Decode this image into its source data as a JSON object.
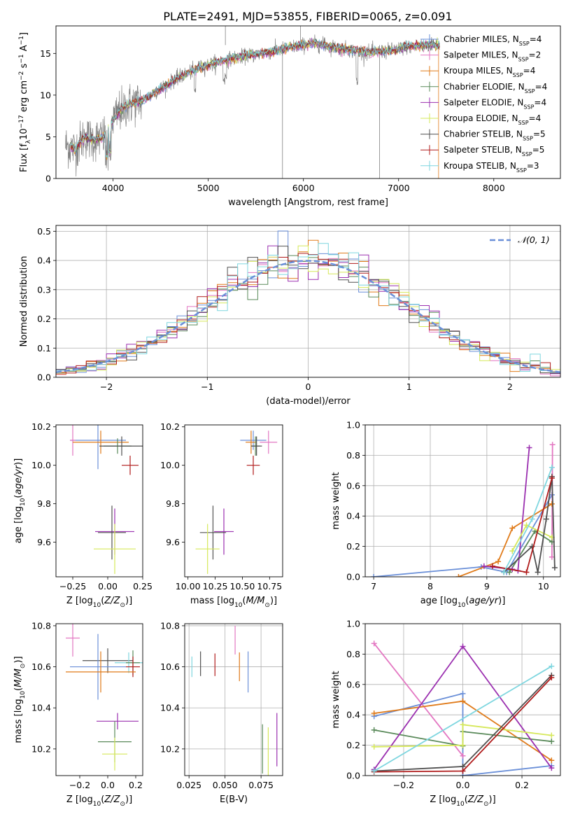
{
  "title": "PLATE=2491, MJD=53855, FIBERID=0065, z=0.091",
  "chart_data": [
    {
      "id": "spectrum",
      "type": "line",
      "xlabel": "wavelength [Angstrom, rest frame]",
      "ylabel": "Flux [f_λ10^-17 erg cm^-2 s^-1 A^-1]",
      "xlim": [
        3400,
        8700
      ],
      "ylim": [
        0,
        18.3
      ],
      "xticks": [
        4000,
        5000,
        6000,
        7000,
        8000
      ],
      "yticks": [
        0,
        5,
        10,
        15
      ],
      "grid": false,
      "legend_position": "upper-right",
      "data_range": [
        3500,
        7430
      ],
      "series": [
        {
          "name": "Chabrier MILES, N_SSP=4",
          "color": "#6a8fd8"
        },
        {
          "name": "Salpeter MILES, N_SSP=2",
          "color": "#e377c2"
        },
        {
          "name": "Kroupa MILES, N_SSP=4",
          "color": "#e07b1a"
        },
        {
          "name": "Chabrier ELODIE, N_SSP=4",
          "color": "#5a8a5a"
        },
        {
          "name": "Salpeter ELODIE, N_SSP=4",
          "color": "#9b30b0"
        },
        {
          "name": "Kroupa ELODIE, N_SSP=4",
          "color": "#d6e85a"
        },
        {
          "name": "Chabrier STELIB, N_SSP=5",
          "color": "#505050"
        },
        {
          "name": "Salpeter STELIB, N_SSP=5",
          "color": "#b01c1c"
        },
        {
          "name": "Kroupa STELIB, N_SSP=3",
          "color": "#7ed6df"
        }
      ],
      "data_color": "#808080",
      "continuum_x": [
        3500,
        3600,
        3700,
        3800,
        3900,
        4000,
        4100,
        4200,
        4300,
        4500,
        4700,
        4900,
        5100,
        5300,
        5500,
        5700,
        5900,
        6100,
        6300,
        6500,
        6700,
        6900,
        7100,
        7300,
        7430
      ],
      "continuum_y": [
        4.0,
        3.5,
        5.0,
        4.6,
        5.0,
        7.0,
        8.5,
        9.0,
        9.3,
        10.8,
        12.2,
        13.2,
        14.0,
        14.5,
        14.9,
        15.3,
        15.8,
        16.2,
        15.8,
        15.4,
        15.1,
        15.3,
        15.8,
        16.0,
        16.0
      ]
    },
    {
      "id": "residuals",
      "type": "histogram",
      "xlabel": "(data-model)/error",
      "ylabel": "Normed distribution",
      "xlim": [
        -2.5,
        2.5
      ],
      "ylim": [
        0,
        0.52
      ],
      "xticks": [
        -2,
        -1,
        0,
        1,
        2
      ],
      "yticks": [
        0.0,
        0.1,
        0.2,
        0.3,
        0.4,
        0.5
      ],
      "grid": true,
      "legend_position": "upper-right",
      "reference": {
        "name": "𝒩(0, 1)",
        "color": "#6a8fd8"
      },
      "bin_width": 0.1,
      "bins_start": -2.5,
      "series_colors": [
        "#6a8fd8",
        "#e377c2",
        "#e07b1a",
        "#5a8a5a",
        "#9b30b0",
        "#d6e85a",
        "#505050",
        "#b01c1c",
        "#7ed6df"
      ]
    },
    {
      "id": "age-vs-Z",
      "type": "errorbar",
      "xlabel": "Z [log10(Z/Z⊙)]",
      "ylabel": "age  [log10(age/yr)]",
      "xlim": [
        -0.37,
        0.25
      ],
      "ylim": [
        9.42,
        10.21
      ],
      "xticks": [
        -0.25,
        0.0,
        0.25
      ],
      "yticks": [
        9.6,
        9.8,
        10.0,
        10.2
      ],
      "grid": false,
      "points": [
        {
          "color": "#6a8fd8",
          "x": -0.07,
          "xerr": 0.2,
          "y": 10.13,
          "yerr": 0.15
        },
        {
          "color": "#e377c2",
          "x": -0.25,
          "xerr": 0.02,
          "y": 10.13,
          "yerr": 0.08
        },
        {
          "color": "#e07b1a",
          "x": -0.05,
          "xerr": 0.2,
          "y": 10.12,
          "yerr": 0.06
        },
        {
          "color": "#5a8a5a",
          "x": 0.07,
          "xerr": 0.1,
          "y": 10.1,
          "yerr": 0.04
        },
        {
          "color": "#505050",
          "x": 0.1,
          "xerr": 0.16,
          "y": 10.1,
          "yerr": 0.05
        },
        {
          "color": "#b01c1c",
          "x": 0.16,
          "xerr": 0.06,
          "y": 10.0,
          "yerr": 0.05
        },
        {
          "color": "#9b30b0",
          "x": 0.05,
          "xerr": 0.14,
          "y": 9.655,
          "yerr": 0.12
        },
        {
          "color": "#505050",
          "x": 0.03,
          "xerr": 0.1,
          "y": 9.65,
          "yerr": 0.14
        },
        {
          "color": "#d6e85a",
          "x": 0.05,
          "xerr": 0.15,
          "y": 9.565,
          "yerr": 0.13
        }
      ]
    },
    {
      "id": "age-vs-mass",
      "type": "errorbar",
      "xlabel": "mass [log10(M/M⊙)]",
      "ylabel": "",
      "xlim": [
        9.97,
        10.87
      ],
      "ylim": [
        9.42,
        10.21
      ],
      "xticks": [
        10.0,
        10.25,
        10.5,
        10.75
      ],
      "yticks": [
        9.6,
        9.8,
        10.0,
        10.2
      ],
      "grid": false,
      "points": [
        {
          "color": "#6a8fd8",
          "x": 10.6,
          "xerr": 0.12,
          "y": 10.13,
          "yerr": 0.05
        },
        {
          "color": "#e377c2",
          "x": 10.74,
          "xerr": 0.08,
          "y": 10.12,
          "yerr": 0.06
        },
        {
          "color": "#e07b1a",
          "x": 10.58,
          "xerr": 0.05,
          "y": 10.12,
          "yerr": 0.06
        },
        {
          "color": "#5a8a5a",
          "x": 10.62,
          "xerr": 0.04,
          "y": 10.1,
          "yerr": 0.05
        },
        {
          "color": "#505050",
          "x": 10.63,
          "xerr": 0.05,
          "y": 10.1,
          "yerr": 0.05
        },
        {
          "color": "#b01c1c",
          "x": 10.6,
          "xerr": 0.06,
          "y": 10.0,
          "yerr": 0.05
        },
        {
          "color": "#9b30b0",
          "x": 10.33,
          "xerr": 0.09,
          "y": 9.655,
          "yerr": 0.12
        },
        {
          "color": "#505050",
          "x": 10.23,
          "xerr": 0.12,
          "y": 9.65,
          "yerr": 0.14
        },
        {
          "color": "#d6e85a",
          "x": 10.18,
          "xerr": 0.11,
          "y": 9.565,
          "yerr": 0.13
        }
      ]
    },
    {
      "id": "mass-weight-vs-age",
      "type": "line",
      "xlabel": "age  [log10(age/yr)]",
      "ylabel": "mass weight",
      "xlim": [
        6.85,
        10.3
      ],
      "ylim": [
        0,
        1.0
      ],
      "xticks": [
        7,
        8,
        9,
        10
      ],
      "yticks": [
        0.0,
        0.2,
        0.4,
        0.6,
        0.8,
        1.0
      ],
      "grid": true,
      "series": [
        {
          "color": "#6a8fd8",
          "x": [
            7.0,
            8.9,
            9.35,
            10.15
          ],
          "y": [
            0.0,
            0.065,
            0.03,
            0.54
          ]
        },
        {
          "color": "#e377c2",
          "x": [
            10.15,
            10.16
          ],
          "y": [
            0.13,
            0.87
          ]
        },
        {
          "color": "#e07b1a",
          "x": [
            8.5,
            9.2,
            9.45,
            10.15
          ],
          "y": [
            0.0,
            0.1,
            0.32,
            0.48
          ]
        },
        {
          "color": "#5a8a5a",
          "x": [
            9.4,
            9.85,
            10.15
          ],
          "y": [
            0.03,
            0.3,
            0.23
          ]
        },
        {
          "color": "#9b30b0",
          "x": [
            8.95,
            9.45,
            9.55,
            9.75
          ],
          "y": [
            0.07,
            0.05,
            0.04,
            0.85
          ]
        },
        {
          "color": "#d6e85a",
          "x": [
            9.45,
            9.7,
            10.15
          ],
          "y": [
            0.17,
            0.34,
            0.26
          ]
        },
        {
          "color": "#505050",
          "x": [
            9.3,
            9.8,
            9.9,
            10.05,
            10.15,
            10.2
          ],
          "y": [
            0.03,
            0.2,
            0.03,
            0.38,
            0.66,
            0.06
          ]
        },
        {
          "color": "#b01c1c",
          "x": [
            9.1,
            9.7,
            10.15
          ],
          "y": [
            0.07,
            0.03,
            0.65
          ]
        },
        {
          "color": "#7ed6df",
          "x": [
            9.3,
            9.8,
            10.15
          ],
          "y": [
            0.03,
            0.38,
            0.72
          ]
        }
      ]
    },
    {
      "id": "mass-vs-Z",
      "type": "errorbar",
      "xlabel": "Z [log10(Z/Z⊙)]",
      "ylabel": "mass [log10(M/M⊙)]",
      "xlim": [
        -0.37,
        0.25
      ],
      "ylim": [
        10.07,
        10.81
      ],
      "xticks": [
        -0.2,
        0.0,
        0.2
      ],
      "yticks": [
        10.2,
        10.4,
        10.6,
        10.8
      ],
      "grid": false,
      "points": [
        {
          "color": "#e377c2",
          "x": -0.25,
          "xerr": 0.05,
          "y": 10.74,
          "yerr": 0.09
        },
        {
          "color": "#505050",
          "x": 0.0,
          "xerr": 0.18,
          "y": 10.63,
          "yerr": 0.06
        },
        {
          "color": "#7ed6df",
          "x": 0.15,
          "xerr": 0.1,
          "y": 10.62,
          "yerr": 0.05
        },
        {
          "color": "#5a8a5a",
          "x": 0.18,
          "xerr": 0.05,
          "y": 10.62,
          "yerr": 0.06
        },
        {
          "color": "#6a8fd8",
          "x": -0.07,
          "xerr": 0.2,
          "y": 10.6,
          "yerr": 0.16
        },
        {
          "color": "#b01c1c",
          "x": 0.18,
          "xerr": 0.05,
          "y": 10.6,
          "yerr": 0.05
        },
        {
          "color": "#e07b1a",
          "x": -0.05,
          "xerr": 0.25,
          "y": 10.575,
          "yerr": 0.1
        },
        {
          "color": "#9b30b0",
          "x": 0.07,
          "xerr": 0.15,
          "y": 10.335,
          "yerr": 0.04
        },
        {
          "color": "#5a8a5a",
          "x": 0.05,
          "xerr": 0.12,
          "y": 10.235,
          "yerr": 0.1
        },
        {
          "color": "#d6e85a",
          "x": 0.05,
          "xerr": 0.09,
          "y": 10.175,
          "yerr": 0.08
        }
      ]
    },
    {
      "id": "mass-vs-EBV",
      "type": "errorbar",
      "xlabel": "E(B-V)",
      "ylabel": "",
      "xlim": [
        0.022,
        0.09
      ],
      "ylim": [
        10.07,
        10.81
      ],
      "xticks": [
        0.025,
        0.05,
        0.075
      ],
      "yticks": [
        10.2,
        10.4,
        10.6,
        10.8
      ],
      "grid": true,
      "points": [
        {
          "color": "#7ed6df",
          "x": 0.027,
          "y": 10.6,
          "yerr": 0.05
        },
        {
          "color": "#505050",
          "x": 0.033,
          "y": 10.615,
          "yerr": 0.06
        },
        {
          "color": "#b01c1c",
          "x": 0.043,
          "y": 10.61,
          "yerr": 0.055
        },
        {
          "color": "#e377c2",
          "x": 0.057,
          "y": 10.73,
          "yerr": 0.07
        },
        {
          "color": "#e07b1a",
          "x": 0.06,
          "y": 10.6,
          "yerr": 0.07
        },
        {
          "color": "#6a8fd8",
          "x": 0.066,
          "y": 10.575,
          "yerr": 0.1
        },
        {
          "color": "#5a8a5a",
          "x": 0.076,
          "y": 10.2,
          "yerr": 0.12
        },
        {
          "color": "#d6e85a",
          "x": 0.08,
          "y": 10.185,
          "yerr": 0.12
        },
        {
          "color": "#9b30b0",
          "x": 0.086,
          "y": 10.245,
          "yerr": 0.13
        }
      ]
    },
    {
      "id": "mass-weight-vs-Z",
      "type": "line",
      "xlabel": "Z [log10(Z/Z⊙)]",
      "ylabel": "mass weight",
      "xlim": [
        -0.33,
        0.33
      ],
      "ylim": [
        0,
        1.0
      ],
      "xticks": [
        -0.2,
        0.0,
        0.2
      ],
      "yticks": [
        0.0,
        0.2,
        0.4,
        0.6,
        0.8,
        1.0
      ],
      "grid": true,
      "series": [
        {
          "color": "#6a8fd8",
          "x": [
            -0.3,
            0.0,
            0.0,
            0.3
          ],
          "y": [
            0.39,
            0.54,
            0.0,
            0.065
          ]
        },
        {
          "color": "#e377c2",
          "x": [
            -0.3,
            0.0
          ],
          "y": [
            0.87,
            0.13
          ]
        },
        {
          "color": "#e07b1a",
          "x": [
            -0.3,
            0.0,
            0.3
          ],
          "y": [
            0.41,
            0.49,
            0.1
          ]
        },
        {
          "color": "#5a8a5a",
          "x": [
            -0.3,
            0.0,
            0.0,
            0.3
          ],
          "y": [
            0.3,
            0.195,
            0.29,
            0.225
          ]
        },
        {
          "color": "#9b30b0",
          "x": [
            -0.3,
            0.0,
            0.3
          ],
          "y": [
            0.04,
            0.85,
            0.05
          ]
        },
        {
          "color": "#d6e85a",
          "x": [
            -0.3,
            0.0,
            0.0,
            0.3
          ],
          "y": [
            0.19,
            0.2,
            0.335,
            0.265
          ]
        },
        {
          "color": "#505050",
          "x": [
            -0.3,
            0.0,
            0.3
          ],
          "y": [
            0.03,
            0.06,
            0.66
          ]
        },
        {
          "color": "#b01c1c",
          "x": [
            -0.3,
            0.0,
            0.3
          ],
          "y": [
            0.025,
            0.03,
            0.645
          ]
        },
        {
          "color": "#7ed6df",
          "x": [
            -0.3,
            0.3
          ],
          "y": [
            0.03,
            0.72
          ]
        }
      ]
    }
  ]
}
